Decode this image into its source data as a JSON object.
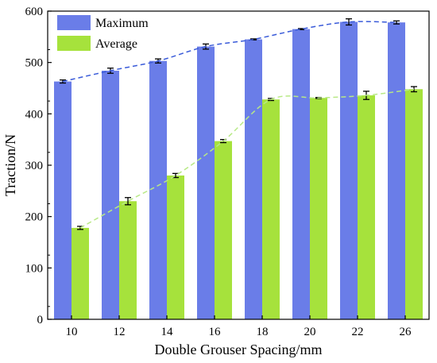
{
  "chart_data": {
    "type": "bar",
    "categories": [
      "10",
      "12",
      "14",
      "16",
      "18",
      "20",
      "22",
      "26"
    ],
    "series": [
      {
        "name": "Maximum",
        "color": "#6a7de8",
        "trend_color": "#3a5bd9",
        "values": [
          463,
          484,
          503,
          531,
          545,
          565,
          579,
          578
        ],
        "errors": [
          3,
          5,
          4,
          5,
          1,
          1,
          6,
          3
        ]
      },
      {
        "name": "Average",
        "color": "#a6e23c",
        "trend_color": "#b8e986",
        "values": [
          178,
          230,
          280,
          347,
          428,
          431,
          436,
          448
        ],
        "errors": [
          3,
          7,
          4,
          3,
          2,
          1,
          8,
          5
        ]
      }
    ],
    "xlabel": "Double Grouser Spacing/mm",
    "ylabel": "Traction/N",
    "ylim": [
      0,
      600
    ],
    "yticks": [
      0,
      100,
      200,
      300,
      400,
      500,
      600
    ],
    "legend_position": "top-left",
    "grid": false,
    "trend_lines": "dashed"
  }
}
